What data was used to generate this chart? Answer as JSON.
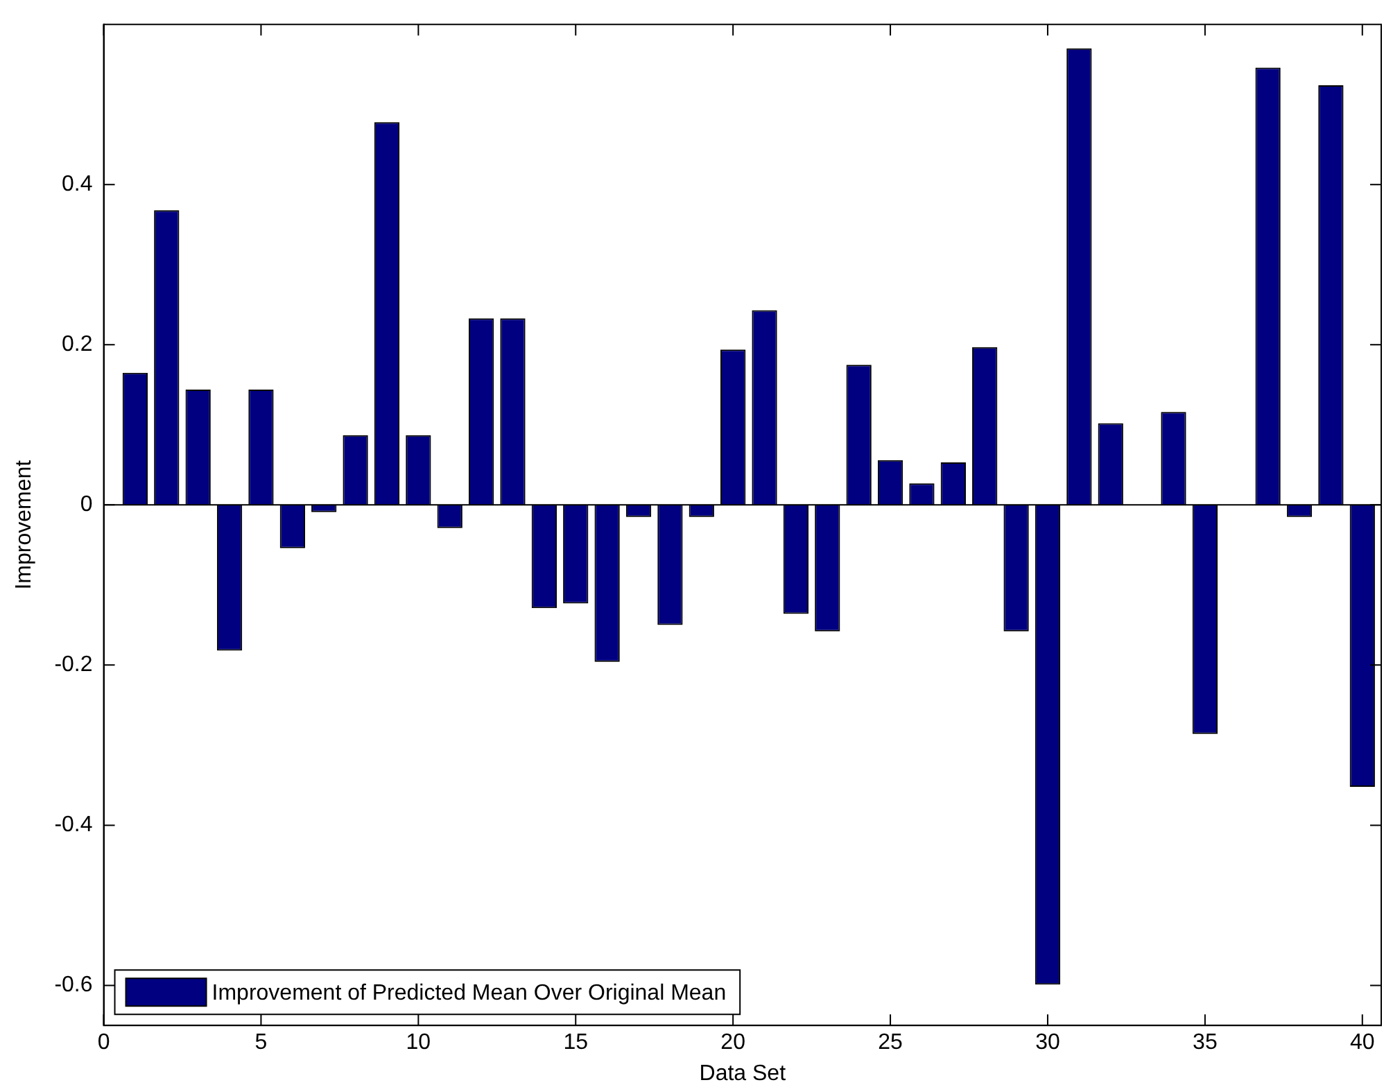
{
  "chart_data": {
    "type": "bar",
    "xlabel": "Data Set",
    "ylabel": "Improvement",
    "x": [
      1,
      2,
      3,
      4,
      5,
      6,
      7,
      8,
      9,
      10,
      11,
      12,
      13,
      14,
      15,
      16,
      17,
      18,
      19,
      20,
      21,
      22,
      23,
      24,
      25,
      26,
      27,
      28,
      29,
      30,
      31,
      32,
      33,
      34,
      35,
      36,
      37,
      38,
      39,
      40
    ],
    "series": [
      {
        "name": "Improvement of Predicted Mean Over Original Mean",
        "color": "#000080",
        "values": [
          0.165,
          0.368,
          0.144,
          -0.182,
          0.144,
          -0.054,
          -0.009,
          0.087,
          0.478,
          0.087,
          -0.029,
          0.233,
          0.233,
          -0.129,
          -0.123,
          -0.196,
          -0.015,
          -0.15,
          -0.015,
          0.194,
          0.243,
          -0.136,
          -0.158,
          0.175,
          0.056,
          0.027,
          0.053,
          0.197,
          -0.158,
          -0.599,
          0.57,
          0.102,
          null,
          0.116,
          -0.286,
          null,
          0.546,
          -0.015,
          0.524,
          -0.352
        ]
      }
    ],
    "xlim": [
      0,
      40.6
    ],
    "xticks": [
      0,
      5,
      10,
      15,
      20,
      25,
      30,
      35,
      40
    ],
    "ylim": [
      -0.65,
      0.6
    ],
    "yticks": [
      -0.6,
      -0.4,
      -0.2,
      0,
      0.2,
      0.4
    ],
    "ref_lines": [
      {
        "axis": "y",
        "value": 0,
        "color": "#000000"
      }
    ],
    "grid": false,
    "legend": "bottom left"
  }
}
